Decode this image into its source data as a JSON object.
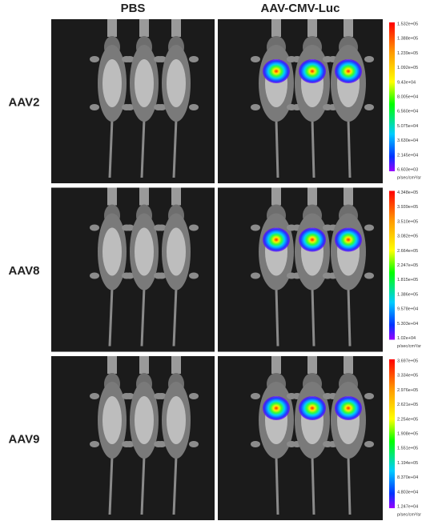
{
  "header": {
    "columns": [
      "PBS",
      "AAV-CMV-Luc"
    ]
  },
  "rows": [
    {
      "label": "AAV2",
      "scale": {
        "ticks": [
          "1.532e+05",
          "1.388e+05",
          "1.239e+05",
          "1.092e+05",
          "9.43e+04",
          "8.005e+04",
          "6.560e+04",
          "5.075e+04",
          "3.630e+04",
          "2.145e+04",
          "6.603e+03"
        ],
        "unit": "p/sec/cm²/sr"
      }
    },
    {
      "label": "AAV8",
      "scale": {
        "ticks": [
          "4.348e+05",
          "3.939e+05",
          "3.510e+05",
          "3.082e+05",
          "2.664e+05",
          "2.247e+05",
          "1.815e+05",
          "1.386e+05",
          "9.578e+04",
          "5.303e+04",
          "1.02e+04"
        ],
        "unit": "p/sec/cm²/sr"
      }
    },
    {
      "label": "AAV9",
      "scale": {
        "ticks": [
          "3.697e+05",
          "3.334e+05",
          "2.976e+05",
          "2.621e+05",
          "2.254e+05",
          "1.908e+05",
          "1.551e+05",
          "1.194e+05",
          "8.370e+04",
          "4.803e+04",
          "1.247e+04"
        ],
        "unit": "p/sec/cm²/sr"
      }
    }
  ]
}
